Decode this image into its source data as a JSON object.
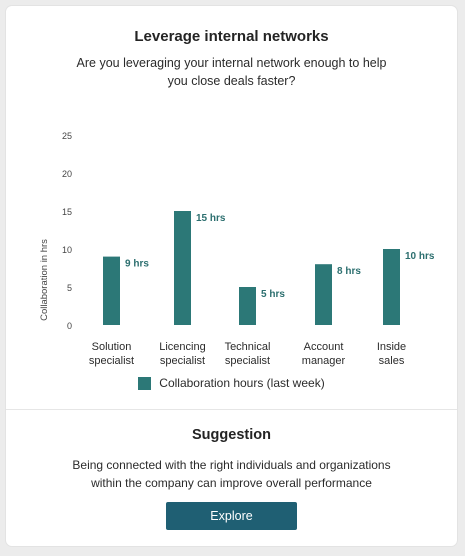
{
  "card": {
    "title": "Leverage internal networks",
    "subtitle": "Are you leveraging your internal network enough to help you close deals faster?"
  },
  "chart_data": {
    "type": "bar",
    "categories": [
      [
        "Solution",
        "specialist"
      ],
      [
        "Licencing",
        "specialist"
      ],
      [
        "Technical",
        "specialist"
      ],
      [
        "Account",
        "manager"
      ],
      [
        "Inside",
        "sales"
      ]
    ],
    "series": [
      {
        "name": "Collaboration hours (last week)",
        "values": [
          9,
          15,
          5,
          8,
          10
        ],
        "labels": [
          "9 hrs",
          "15 hrs",
          "5 hrs",
          "8 hrs",
          "10 hrs"
        ]
      }
    ],
    "ylabel": "Collaboration in hrs",
    "xlabel": "",
    "ylim": [
      0,
      25
    ],
    "yticks": [
      0,
      5,
      10,
      15,
      20,
      25
    ],
    "grid": false,
    "legend_position": "bottom-center",
    "bar_color": "#2c7877"
  },
  "legend": {
    "label": "Collaboration hours (last week)"
  },
  "suggestion": {
    "title": "Suggestion",
    "text": "Being connected with the right individuals and organizations within the company can improve overall performance",
    "button_label": "Explore",
    "button_color": "#1f5f73"
  }
}
